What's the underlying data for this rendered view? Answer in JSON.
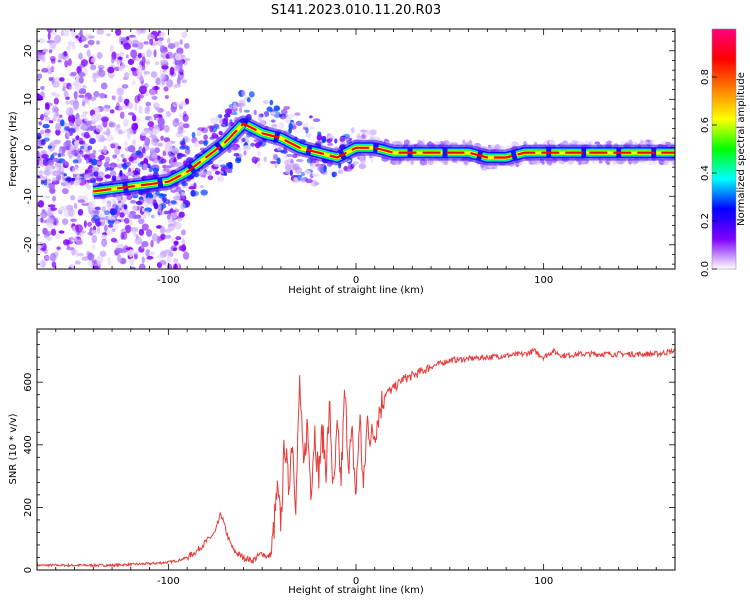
{
  "figure": {
    "title": "S141.2023.010.11.20.R03"
  },
  "chart_data": [
    {
      "type": "heatmap",
      "xlabel": "Height of straight line (km)",
      "ylabel": "Frequency (Hz)",
      "xlim": [
        -170,
        170
      ],
      "ylim": [
        -25,
        24.5
      ],
      "xticks": [
        -100,
        0,
        100
      ],
      "xtick_labels": [
        "-100",
        "0",
        "100"
      ],
      "yticks": [
        -20,
        -10,
        0,
        10,
        20
      ],
      "ytick_labels": [
        "-20",
        "-10",
        "0",
        "10",
        "20"
      ],
      "colorbar": {
        "label": "Normalized spectral amplitude",
        "range": [
          0,
          1
        ],
        "ticks": [
          0.0,
          0.2,
          0.4,
          0.6,
          0.8
        ],
        "tick_labels": [
          "0.0",
          "0.2",
          "0.4",
          "0.6",
          "0.8"
        ],
        "colors": [
          "#ffffff",
          "#7f00ff",
          "#0000ff",
          "#00ffff",
          "#00ff00",
          "#ffff00",
          "#ff7f00",
          "#ff0000",
          "#ff007f"
        ]
      },
      "ridge": {
        "x": [
          -140,
          -120,
          -100,
          -90,
          -80,
          -70,
          -60,
          -50,
          -40,
          -30,
          -20,
          -10,
          0,
          10,
          20,
          40,
          60,
          70,
          80,
          90,
          100,
          120,
          140,
          170
        ],
        "y": [
          -9,
          -8,
          -7,
          -5,
          -2,
          1,
          5,
          3,
          2,
          0,
          -1,
          -2,
          0,
          0,
          -1,
          -1,
          -1,
          -2,
          -2,
          -1,
          -1,
          -1,
          -1,
          -1
        ]
      },
      "grid": false
    },
    {
      "type": "line",
      "xlabel": "Height of straight line (km)",
      "ylabel": "SNR (10 * v/v)",
      "xlim": [
        -170,
        170
      ],
      "ylim": [
        0,
        770
      ],
      "xticks": [
        -100,
        0,
        100
      ],
      "xtick_labels": [
        "-100",
        "0",
        "100"
      ],
      "yticks": [
        0,
        200,
        400,
        600
      ],
      "ytick_labels": [
        "0",
        "200",
        "400",
        "600"
      ],
      "color": "#e63c3c",
      "series": [
        {
          "x": [
            -170,
            -160,
            -150,
            -140,
            -130,
            -120,
            -110,
            -100,
            -95,
            -90,
            -85,
            -80,
            -75,
            -72,
            -70,
            -68,
            -65,
            -60,
            -55,
            -50,
            -47,
            -45,
            -42,
            -40,
            -38,
            -36,
            -34,
            -32,
            -30,
            -28,
            -26,
            -24,
            -22,
            -20,
            -18,
            -16,
            -14,
            -12,
            -10,
            -8,
            -6,
            -4,
            -2,
            0,
            2,
            4,
            6,
            8,
            10,
            12,
            15,
            20,
            25,
            30,
            40,
            50,
            60,
            70,
            80,
            90,
            95,
            100,
            105,
            110,
            120,
            130,
            140,
            150,
            160,
            170
          ],
          "y": [
            15,
            15,
            15,
            15,
            15,
            18,
            20,
            25,
            30,
            40,
            60,
            90,
            120,
            180,
            140,
            100,
            60,
            40,
            30,
            55,
            40,
            55,
            250,
            150,
            420,
            260,
            430,
            210,
            600,
            310,
            470,
            260,
            450,
            300,
            440,
            330,
            520,
            230,
            450,
            280,
            570,
            350,
            420,
            230,
            500,
            250,
            480,
            420,
            440,
            500,
            560,
            580,
            610,
            620,
            650,
            670,
            675,
            680,
            685,
            690,
            700,
            680,
            700,
            685,
            690,
            690,
            690,
            690,
            690,
            700
          ]
        }
      ],
      "grid": false
    }
  ]
}
